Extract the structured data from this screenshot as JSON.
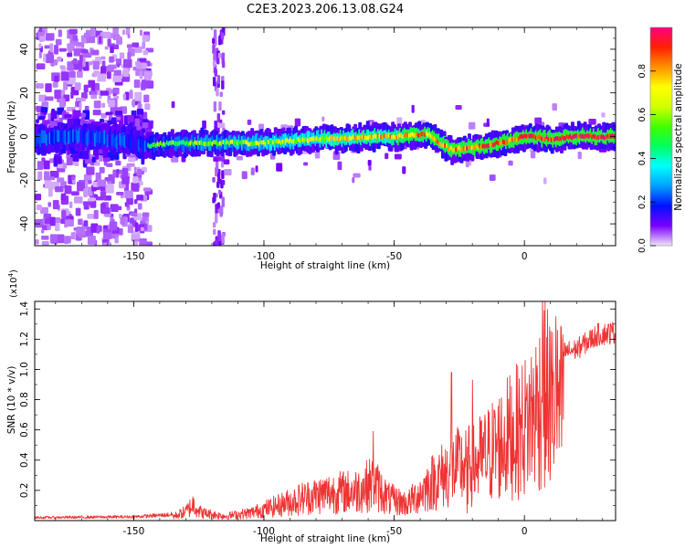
{
  "title": "C2E3.2023.206.13.08.G24",
  "colorbar": {
    "label": "Normalized spectral amplitude",
    "ticks": [
      "0.0",
      "0.2",
      "0.4",
      "0.6",
      "0.8"
    ],
    "tick_values": [
      0.0,
      0.2,
      0.4,
      0.6,
      0.8
    ],
    "range": [
      0,
      1
    ],
    "stops": [
      "#f2e4fa",
      "#7a00ff",
      "#0010ff",
      "#00a0ff",
      "#00ffff",
      "#00ff60",
      "#40ff00",
      "#d0ff00",
      "#ffff00",
      "#ff9000",
      "#ff2000",
      "#ff0080"
    ]
  },
  "chart_data": [
    {
      "type": "heatmap",
      "xlabel": "Height of straight line (km)",
      "ylabel": "Frequency (Hz)",
      "xlim": [
        -188,
        35
      ],
      "ylim": [
        -50,
        50
      ],
      "xticks": [
        -150,
        -100,
        -50,
        0
      ],
      "xtick_labels": [
        "-150",
        "-100",
        "-50",
        "0"
      ],
      "yticks": [
        -40,
        -20,
        0,
        20,
        40
      ],
      "ytick_labels": [
        "-40",
        "-20",
        "0",
        "20",
        "40"
      ],
      "ridge": [
        {
          "x": -188,
          "y": -1
        },
        {
          "x": -170,
          "y": 0
        },
        {
          "x": -155,
          "y": -2
        },
        {
          "x": -145,
          "y": -4
        },
        {
          "x": -135,
          "y": -3
        },
        {
          "x": -120,
          "y": -3
        },
        {
          "x": -110,
          "y": -3
        },
        {
          "x": -100,
          "y": -3
        },
        {
          "x": -90,
          "y": -2
        },
        {
          "x": -80,
          "y": -1
        },
        {
          "x": -70,
          "y": -1
        },
        {
          "x": -60,
          "y": 0
        },
        {
          "x": -50,
          "y": 0
        },
        {
          "x": -40,
          "y": 1
        },
        {
          "x": -37,
          "y": 1
        },
        {
          "x": -33,
          "y": -3
        },
        {
          "x": -28,
          "y": -6
        },
        {
          "x": -20,
          "y": -5
        },
        {
          "x": -10,
          "y": -3
        },
        {
          "x": 0,
          "y": 0
        },
        {
          "x": 10,
          "y": -1
        },
        {
          "x": 20,
          "y": 0
        },
        {
          "x": 32,
          "y": 0
        }
      ],
      "noisy_region_x": [
        -188,
        -145
      ],
      "noise_column_x": -118
    },
    {
      "type": "line",
      "xlabel": "Height of straight line (km)",
      "ylabel": "SNR (10 * v/v)",
      "y_multiplier": "(x10",
      "y_multiplier_exp": "4",
      "y_multiplier_close": ")",
      "xlim": [
        -188,
        35
      ],
      "ylim": [
        0,
        14500
      ],
      "xticks": [
        -150,
        -100,
        -50,
        0
      ],
      "xtick_labels": [
        "-150",
        "-100",
        "-50",
        "0"
      ],
      "yticks": [
        2000,
        4000,
        6000,
        8000,
        10000,
        12000,
        14000
      ],
      "ytick_labels": [
        "0.2",
        "0.4",
        "0.6",
        "0.8",
        "1.0",
        "1.2",
        "1.4"
      ],
      "series": [
        {
          "color": "#ee3333",
          "envelope": [
            {
              "x": -188,
              "y": 200
            },
            {
              "x": -150,
              "y": 250
            },
            {
              "x": -135,
              "y": 400
            },
            {
              "x": -130,
              "y": 900
            },
            {
              "x": -127,
              "y": 1700
            },
            {
              "x": -124,
              "y": 800
            },
            {
              "x": -115,
              "y": 450
            },
            {
              "x": -105,
              "y": 800
            },
            {
              "x": -95,
              "y": 1500
            },
            {
              "x": -85,
              "y": 2300
            },
            {
              "x": -75,
              "y": 2800
            },
            {
              "x": -65,
              "y": 3000
            },
            {
              "x": -58,
              "y": 3800
            },
            {
              "x": -52,
              "y": 2200
            },
            {
              "x": -45,
              "y": 1700
            },
            {
              "x": -40,
              "y": 2800
            },
            {
              "x": -35,
              "y": 4000
            },
            {
              "x": -30,
              "y": 4800
            },
            {
              "x": -25,
              "y": 5500
            },
            {
              "x": -20,
              "y": 5600
            },
            {
              "x": -15,
              "y": 6500
            },
            {
              "x": -10,
              "y": 7600
            },
            {
              "x": -5,
              "y": 8700
            },
            {
              "x": 0,
              "y": 9500
            },
            {
              "x": 5,
              "y": 11500
            },
            {
              "x": 8,
              "y": 12800
            },
            {
              "x": 12,
              "y": 11500
            },
            {
              "x": 20,
              "y": 11800
            },
            {
              "x": 28,
              "y": 12800
            },
            {
              "x": 35,
              "y": 13000
            }
          ],
          "spikes": [
            {
              "x": -58,
              "y": 5900
            },
            {
              "x": -28,
              "y": 9800
            },
            {
              "x": -20,
              "y": 9300
            },
            {
              "x": 7,
              "y": 14500
            },
            {
              "x": 10,
              "y": 3500
            },
            {
              "x": 12,
              "y": 13500
            },
            {
              "x": -22,
              "y": 500
            }
          ]
        }
      ]
    }
  ]
}
